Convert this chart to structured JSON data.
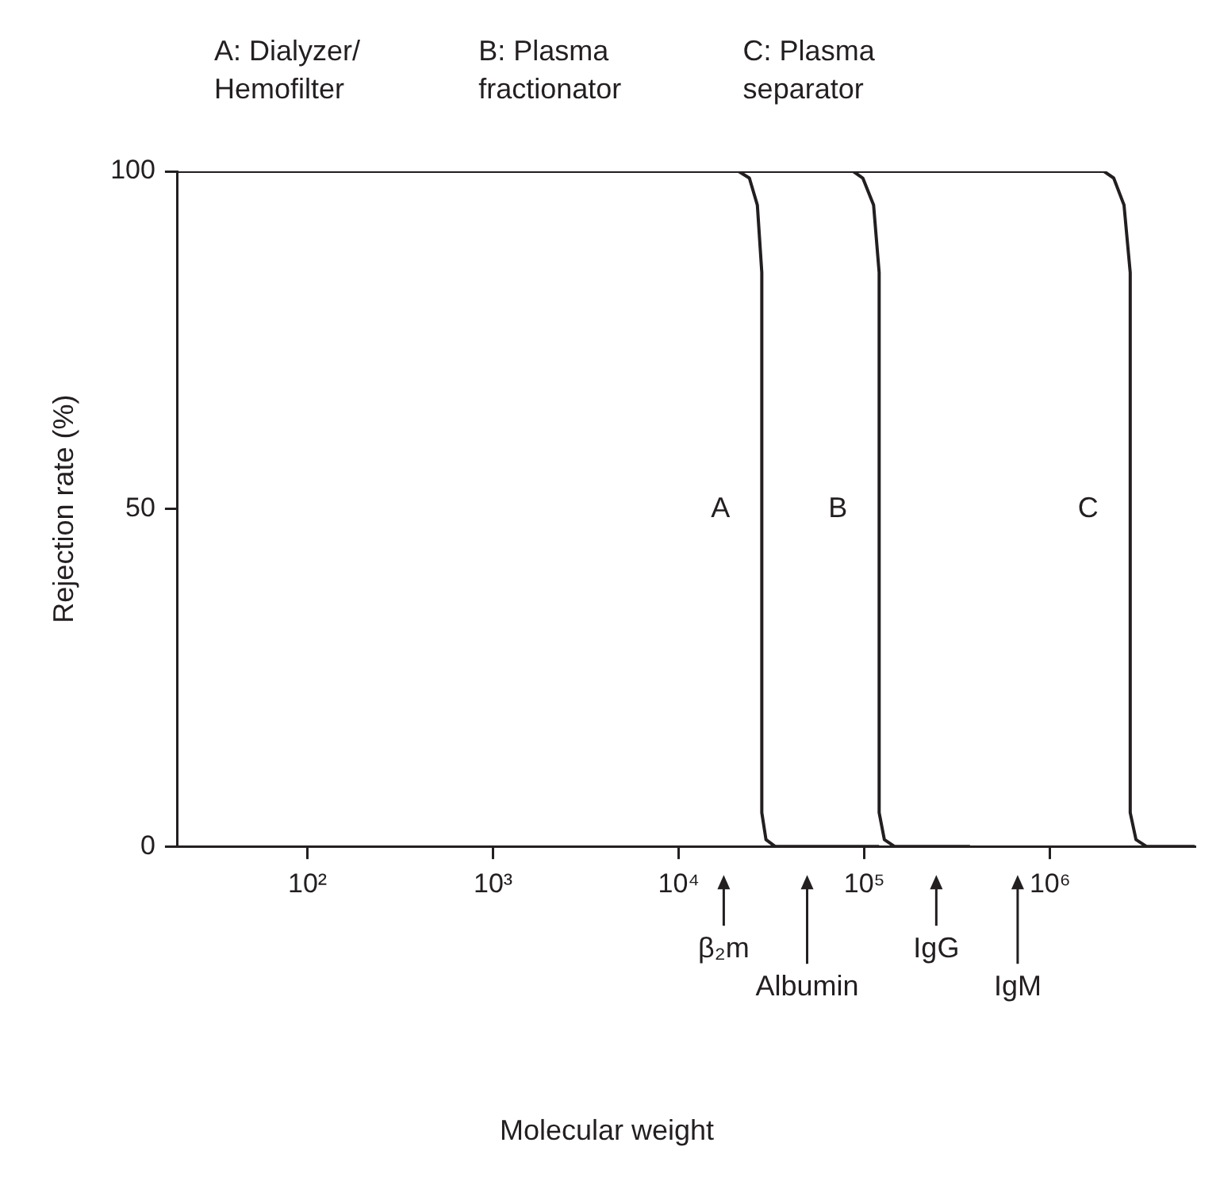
{
  "chart_data": {
    "type": "line",
    "ylabel": "Rejection rate (%)",
    "log": "x",
    "xlim": [
      20,
      6000000
    ],
    "xticks": [
      {
        "value": 100,
        "label": "10²"
      },
      {
        "value": 1000,
        "label": "10³"
      },
      {
        "value": 10000,
        "label": "10⁴"
      },
      {
        "value": 100000,
        "label": "10⁵"
      },
      {
        "value": 1000000,
        "label": "10⁶"
      }
    ],
    "ylim": [
      0,
      100
    ],
    "yticks": [
      0,
      50,
      100
    ],
    "grid": false,
    "legend": false,
    "marker": "none",
    "line_style": "solid",
    "series": [
      {
        "name": "A",
        "color": "#231f20",
        "x": [
          20,
          21000,
          24000,
          26500,
          28000,
          28000,
          29500,
          33000,
          40000,
          120000
        ],
        "values": [
          100,
          100,
          99,
          95,
          85,
          5,
          1,
          0,
          0,
          0
        ]
      },
      {
        "name": "B",
        "color": "#231f20",
        "x": [
          20,
          87000,
          98000,
          112000,
          120000,
          120000,
          128000,
          145000,
          175000,
          370000
        ],
        "values": [
          100,
          100,
          99,
          95,
          85,
          5,
          1,
          0,
          0,
          0
        ]
      },
      {
        "name": "C",
        "color": "#231f20",
        "x": [
          20,
          1950000,
          2200000,
          2500000,
          2700000,
          2700000,
          2900000,
          3300000,
          4500000,
          6000000
        ],
        "values": [
          100,
          100,
          99,
          95,
          85,
          5,
          1,
          0,
          0,
          0
        ]
      }
    ],
    "annotations": [
      "A: Dialyzer/\nHemofilter",
      "B: Plasma\nfractionator",
      "C: Plasma\nseparator",
      "β₂m",
      "Albumin",
      "IgG",
      "IgM",
      "Molecular weight"
    ]
  }
}
